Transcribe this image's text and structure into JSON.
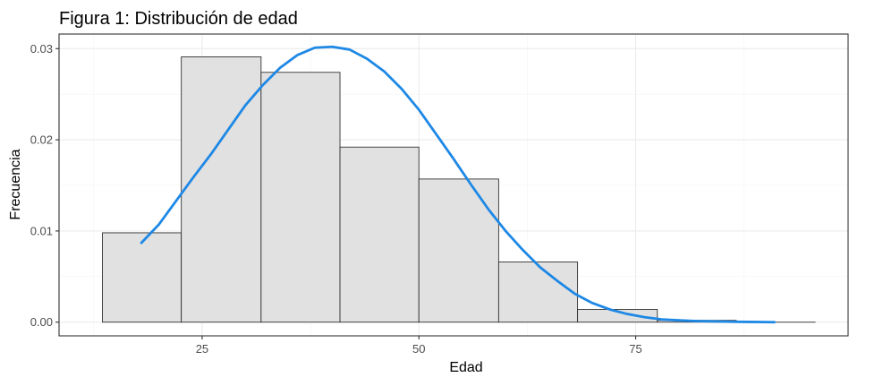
{
  "chart_data": {
    "type": "bar",
    "title": "Figura 1: Distribución de edad",
    "xlabel": "Edad",
    "ylabel": "Frecuencia",
    "xlim": [
      8.5,
      99.5
    ],
    "ylim": [
      -0.0015,
      0.0316
    ],
    "x_ticks": [
      25,
      50,
      75
    ],
    "x_tick_labels": [
      "25",
      "50",
      "75"
    ],
    "y_ticks": [
      0.0,
      0.01,
      0.02,
      0.03
    ],
    "y_tick_labels": [
      "0.00",
      "0.01",
      "0.02",
      "0.03"
    ],
    "grid": true,
    "bins": [
      {
        "x0": 13.5,
        "x1": 22.6,
        "value": 0.0098
      },
      {
        "x0": 22.6,
        "x1": 31.8,
        "value": 0.0291
      },
      {
        "x0": 31.8,
        "x1": 40.9,
        "value": 0.0274
      },
      {
        "x0": 40.9,
        "x1": 50.0,
        "value": 0.0192
      },
      {
        "x0": 50.0,
        "x1": 59.2,
        "value": 0.0157
      },
      {
        "x0": 59.2,
        "x1": 68.3,
        "value": 0.0066
      },
      {
        "x0": 68.3,
        "x1": 77.5,
        "value": 0.0014
      },
      {
        "x0": 77.5,
        "x1": 86.6,
        "value": 0.0002
      },
      {
        "x0": 86.6,
        "x1": 95.7,
        "value": 0.0
      }
    ],
    "density_curve": {
      "color": "#1e88e5",
      "x": [
        18,
        20,
        22,
        24,
        26,
        28,
        30,
        32,
        34,
        36,
        38,
        40,
        42,
        44,
        46,
        48,
        50,
        52,
        54,
        56,
        58,
        60,
        62,
        64,
        66,
        68,
        70,
        72,
        74,
        76,
        78,
        80,
        82,
        84,
        86,
        88,
        90,
        91
      ],
      "y": [
        0.0087,
        0.0107,
        0.0133,
        0.0159,
        0.0184,
        0.0211,
        0.0238,
        0.026,
        0.0279,
        0.0293,
        0.0301,
        0.0302,
        0.0299,
        0.0289,
        0.0275,
        0.0256,
        0.0233,
        0.0206,
        0.0179,
        0.0151,
        0.0124,
        0.01,
        0.0079,
        0.006,
        0.0045,
        0.0031,
        0.0021,
        0.0014,
        0.0009,
        0.00055,
        0.0003,
        0.0002,
        0.00012,
        8e-05,
        5e-05,
        3e-05,
        1e-05,
        0.0
      ]
    },
    "panel_background": "#ffffff",
    "bar_fill": "#e1e1e1",
    "bar_outline": "#333333",
    "grid_color": "#ebebeb"
  }
}
